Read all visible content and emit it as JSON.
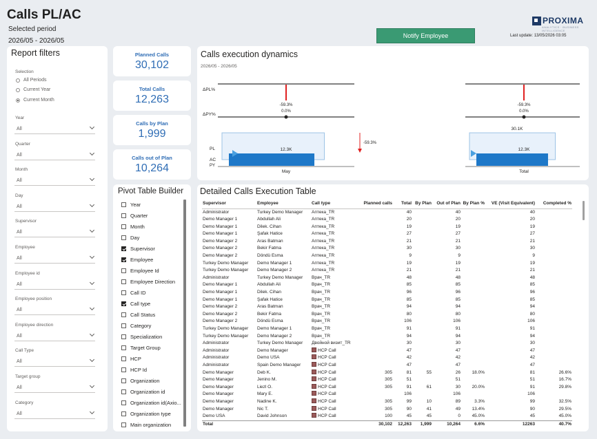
{
  "header": {
    "title": "Calls PL/AC",
    "selected_period_label": "Selected period",
    "selected_period_value": "2026/05 - 2026/05",
    "notify_label": "Notify Employee",
    "logo_text": "PROXIMA",
    "logo_sub": "ANALYTICS · BUSINESS INTELLIGENCE",
    "last_update": "Last update: 13/05/2026 03:05"
  },
  "filters": {
    "title": "Report filters",
    "selection_label": "Selection",
    "radios": [
      {
        "label": "All Periods",
        "selected": false
      },
      {
        "label": "Current Year",
        "selected": false
      },
      {
        "label": "Current Month",
        "selected": true
      }
    ],
    "dropdowns": [
      {
        "label": "Year",
        "value": "All"
      },
      {
        "label": "Quarter",
        "value": "All"
      },
      {
        "label": "Month",
        "value": "All"
      },
      {
        "label": "Day",
        "value": "All"
      },
      {
        "label": "Supervisor",
        "value": "All"
      },
      {
        "label": "Employee",
        "value": "All"
      },
      {
        "label": "Employee id",
        "value": "All"
      },
      {
        "label": "Employee position",
        "value": "All"
      },
      {
        "label": "Employee direction",
        "value": "All"
      },
      {
        "label": "Call Type",
        "value": "All"
      },
      {
        "label": "Target group",
        "value": "All"
      },
      {
        "label": "Category",
        "value": "All"
      }
    ]
  },
  "kpis": [
    {
      "label": "Planned Calls",
      "value": "30,102"
    },
    {
      "label": "Total Calls",
      "value": "12,263"
    },
    {
      "label": "Calls by Plan",
      "value": "1,999"
    },
    {
      "label": "Calls out of Plan",
      "value": "10,264"
    }
  ],
  "chart": {
    "title": "Calls execution dynamics",
    "subtitle": "2026/05 - 2026/05",
    "row_labels": {
      "dpl": "ΔPL%",
      "dpy": "ΔPY%",
      "pl": "PL",
      "ac": "AC",
      "py": "PY"
    },
    "groups": [
      {
        "name": "May",
        "dpl": "-59.3%",
        "dpy": "0.0%",
        "ac_label": "12.3K",
        "pl_label": "",
        "variance": "-59.3%",
        "pl_value": 30102,
        "ac_value": 12263
      },
      {
        "name": "Total",
        "dpl": "-59.3%",
        "dpy": "0.0%",
        "ac_label": "12.3K",
        "pl_label": "30.1K",
        "variance": "",
        "pl_value": 30102,
        "ac_value": 12263
      }
    ],
    "colors": {
      "ac": "#1e78c8",
      "pl": "#e8f1fb",
      "pl_border": "#9cc3e6",
      "negative": "#e02020"
    }
  },
  "pivot": {
    "title": "Pivot Table Builder",
    "items": [
      {
        "label": "Year",
        "checked": false
      },
      {
        "label": "Quarter",
        "checked": false
      },
      {
        "label": "Month",
        "checked": false
      },
      {
        "label": "Day",
        "checked": false
      },
      {
        "label": "Supervisor",
        "checked": true
      },
      {
        "label": "Employee",
        "checked": true
      },
      {
        "label": "Employee Id",
        "checked": false
      },
      {
        "label": "Employee Direction",
        "checked": false
      },
      {
        "label": "Call ID",
        "checked": false
      },
      {
        "label": "Call type",
        "checked": true
      },
      {
        "label": "Call Status",
        "checked": false
      },
      {
        "label": "Category",
        "checked": false
      },
      {
        "label": "Specialization",
        "checked": false
      },
      {
        "label": "Target Group",
        "checked": false
      },
      {
        "label": "HCP",
        "checked": false
      },
      {
        "label": "HCP Id",
        "checked": false
      },
      {
        "label": "Organization",
        "checked": false
      },
      {
        "label": "Organization id",
        "checked": false
      },
      {
        "label": "Organization id(Axio...",
        "checked": false
      },
      {
        "label": "Organization type",
        "checked": false
      },
      {
        "label": "Main organization",
        "checked": false
      }
    ]
  },
  "table": {
    "title": "Detailed Calls Execution Table",
    "columns": [
      "Supervisor",
      "Employee",
      "Call type",
      "Planned calls",
      "Total",
      "By Plan",
      "Out of Plan",
      "By Plan %",
      "VE (Visit Equivalent)",
      "Completed %"
    ],
    "rows": [
      [
        "Administrator",
        "Turkey Demo Manager",
        "Аптека_TR",
        "",
        "40",
        "",
        "40",
        "",
        "40",
        ""
      ],
      [
        "Demo Manager 1",
        "Abdullah Ali",
        "Аптека_TR",
        "",
        "20",
        "",
        "20",
        "",
        "20",
        ""
      ],
      [
        "Demo Manager 1",
        "Dilek. Cihan",
        "Аптека_TR",
        "",
        "19",
        "",
        "19",
        "",
        "19",
        ""
      ],
      [
        "Demo Manager 1",
        "Şafak Hatice",
        "Аптека_TR",
        "",
        "27",
        "",
        "27",
        "",
        "27",
        ""
      ],
      [
        "Demo Manager 2",
        "Aras Batman",
        "Аптека_TR",
        "",
        "21",
        "",
        "21",
        "",
        "21",
        ""
      ],
      [
        "Demo Manager 2",
        "Bekir Fatma",
        "Аптека_TR",
        "",
        "30",
        "",
        "30",
        "",
        "30",
        ""
      ],
      [
        "Demo Manager 2",
        "Döndü Esma",
        "Аптека_TR",
        "",
        "9",
        "",
        "9",
        "",
        "9",
        ""
      ],
      [
        "Turkey Demo Manager",
        "Demo Manager 1",
        "Аптека_TR",
        "",
        "19",
        "",
        "19",
        "",
        "19",
        ""
      ],
      [
        "Turkey Demo Manager",
        "Demo Manager 2",
        "Аптека_TR",
        "",
        "21",
        "",
        "21",
        "",
        "21",
        ""
      ],
      [
        "Administrator",
        "Turkey Demo Manager",
        "Врач_TR",
        "",
        "48",
        "",
        "48",
        "",
        "48",
        ""
      ],
      [
        "Demo Manager 1",
        "Abdullah Ali",
        "Врач_TR",
        "",
        "85",
        "",
        "85",
        "",
        "85",
        ""
      ],
      [
        "Demo Manager 1",
        "Dilek. Cihan",
        "Врач_TR",
        "",
        "96",
        "",
        "96",
        "",
        "96",
        ""
      ],
      [
        "Demo Manager 1",
        "Şafak Hatice",
        "Врач_TR",
        "",
        "85",
        "",
        "85",
        "",
        "85",
        ""
      ],
      [
        "Demo Manager 2",
        "Aras Batman",
        "Врач_TR",
        "",
        "94",
        "",
        "94",
        "",
        "94",
        ""
      ],
      [
        "Demo Manager 2",
        "Bekir Fatma",
        "Врач_TR",
        "",
        "80",
        "",
        "80",
        "",
        "80",
        ""
      ],
      [
        "Demo Manager 2",
        "Döndü Esma",
        "Врач_TR",
        "",
        "106",
        "",
        "106",
        "",
        "106",
        ""
      ],
      [
        "Turkey Demo Manager",
        "Demo Manager 1",
        "Врач_TR",
        "",
        "91",
        "",
        "91",
        "",
        "91",
        ""
      ],
      [
        "Turkey Demo Manager",
        "Demo Manager 2",
        "Врач_TR",
        "",
        "94",
        "",
        "94",
        "",
        "94",
        ""
      ],
      [
        "Administrator",
        "Turkey Demo Manager",
        "Двойной визит_TR",
        "",
        "30",
        "",
        "30",
        "",
        "30",
        ""
      ],
      [
        "Administrator",
        "Demo Manager",
        "HCP Call",
        "",
        "47",
        "",
        "47",
        "",
        "47",
        ""
      ],
      [
        "Administrator",
        "Demo USA",
        "HCP Call",
        "",
        "42",
        "",
        "42",
        "",
        "42",
        ""
      ],
      [
        "Administrator",
        "Spain Demo Manager",
        "HCP Call",
        "",
        "47",
        "",
        "47",
        "",
        "47",
        ""
      ],
      [
        "Demo Manager",
        "Deb K.",
        "HCP Call",
        "305",
        "81",
        "55",
        "26",
        "18.0%",
        "81",
        "26.6%"
      ],
      [
        "Demo Manager",
        "Jenino M.",
        "HCP Call",
        "305",
        "51",
        "",
        "51",
        "",
        "51",
        "16.7%"
      ],
      [
        "Demo Manager",
        "Liezl O.",
        "HCP Call",
        "305",
        "91",
        "61",
        "30",
        "20.0%",
        "91",
        "29.8%"
      ],
      [
        "Demo Manager",
        "Mary E.",
        "HCP Call",
        "",
        "106",
        "",
        "106",
        "",
        "106",
        ""
      ],
      [
        "Demo Manager",
        "Nadine K.",
        "HCP Call",
        "305",
        "99",
        "10",
        "89",
        "3.3%",
        "99",
        "32.5%"
      ],
      [
        "Demo Manager",
        "Nic T.",
        "HCP Call",
        "305",
        "90",
        "41",
        "49",
        "13.4%",
        "90",
        "29.5%"
      ],
      [
        "Demo USA",
        "David Johnson",
        "HCP Call",
        "100",
        "45",
        "45",
        "0",
        "45.0%",
        "45",
        "45.0%"
      ]
    ],
    "total": [
      "Total",
      "",
      "",
      "30,102",
      "12,263",
      "1,999",
      "10,264",
      "6.6%",
      "12263",
      "40.7%"
    ]
  }
}
